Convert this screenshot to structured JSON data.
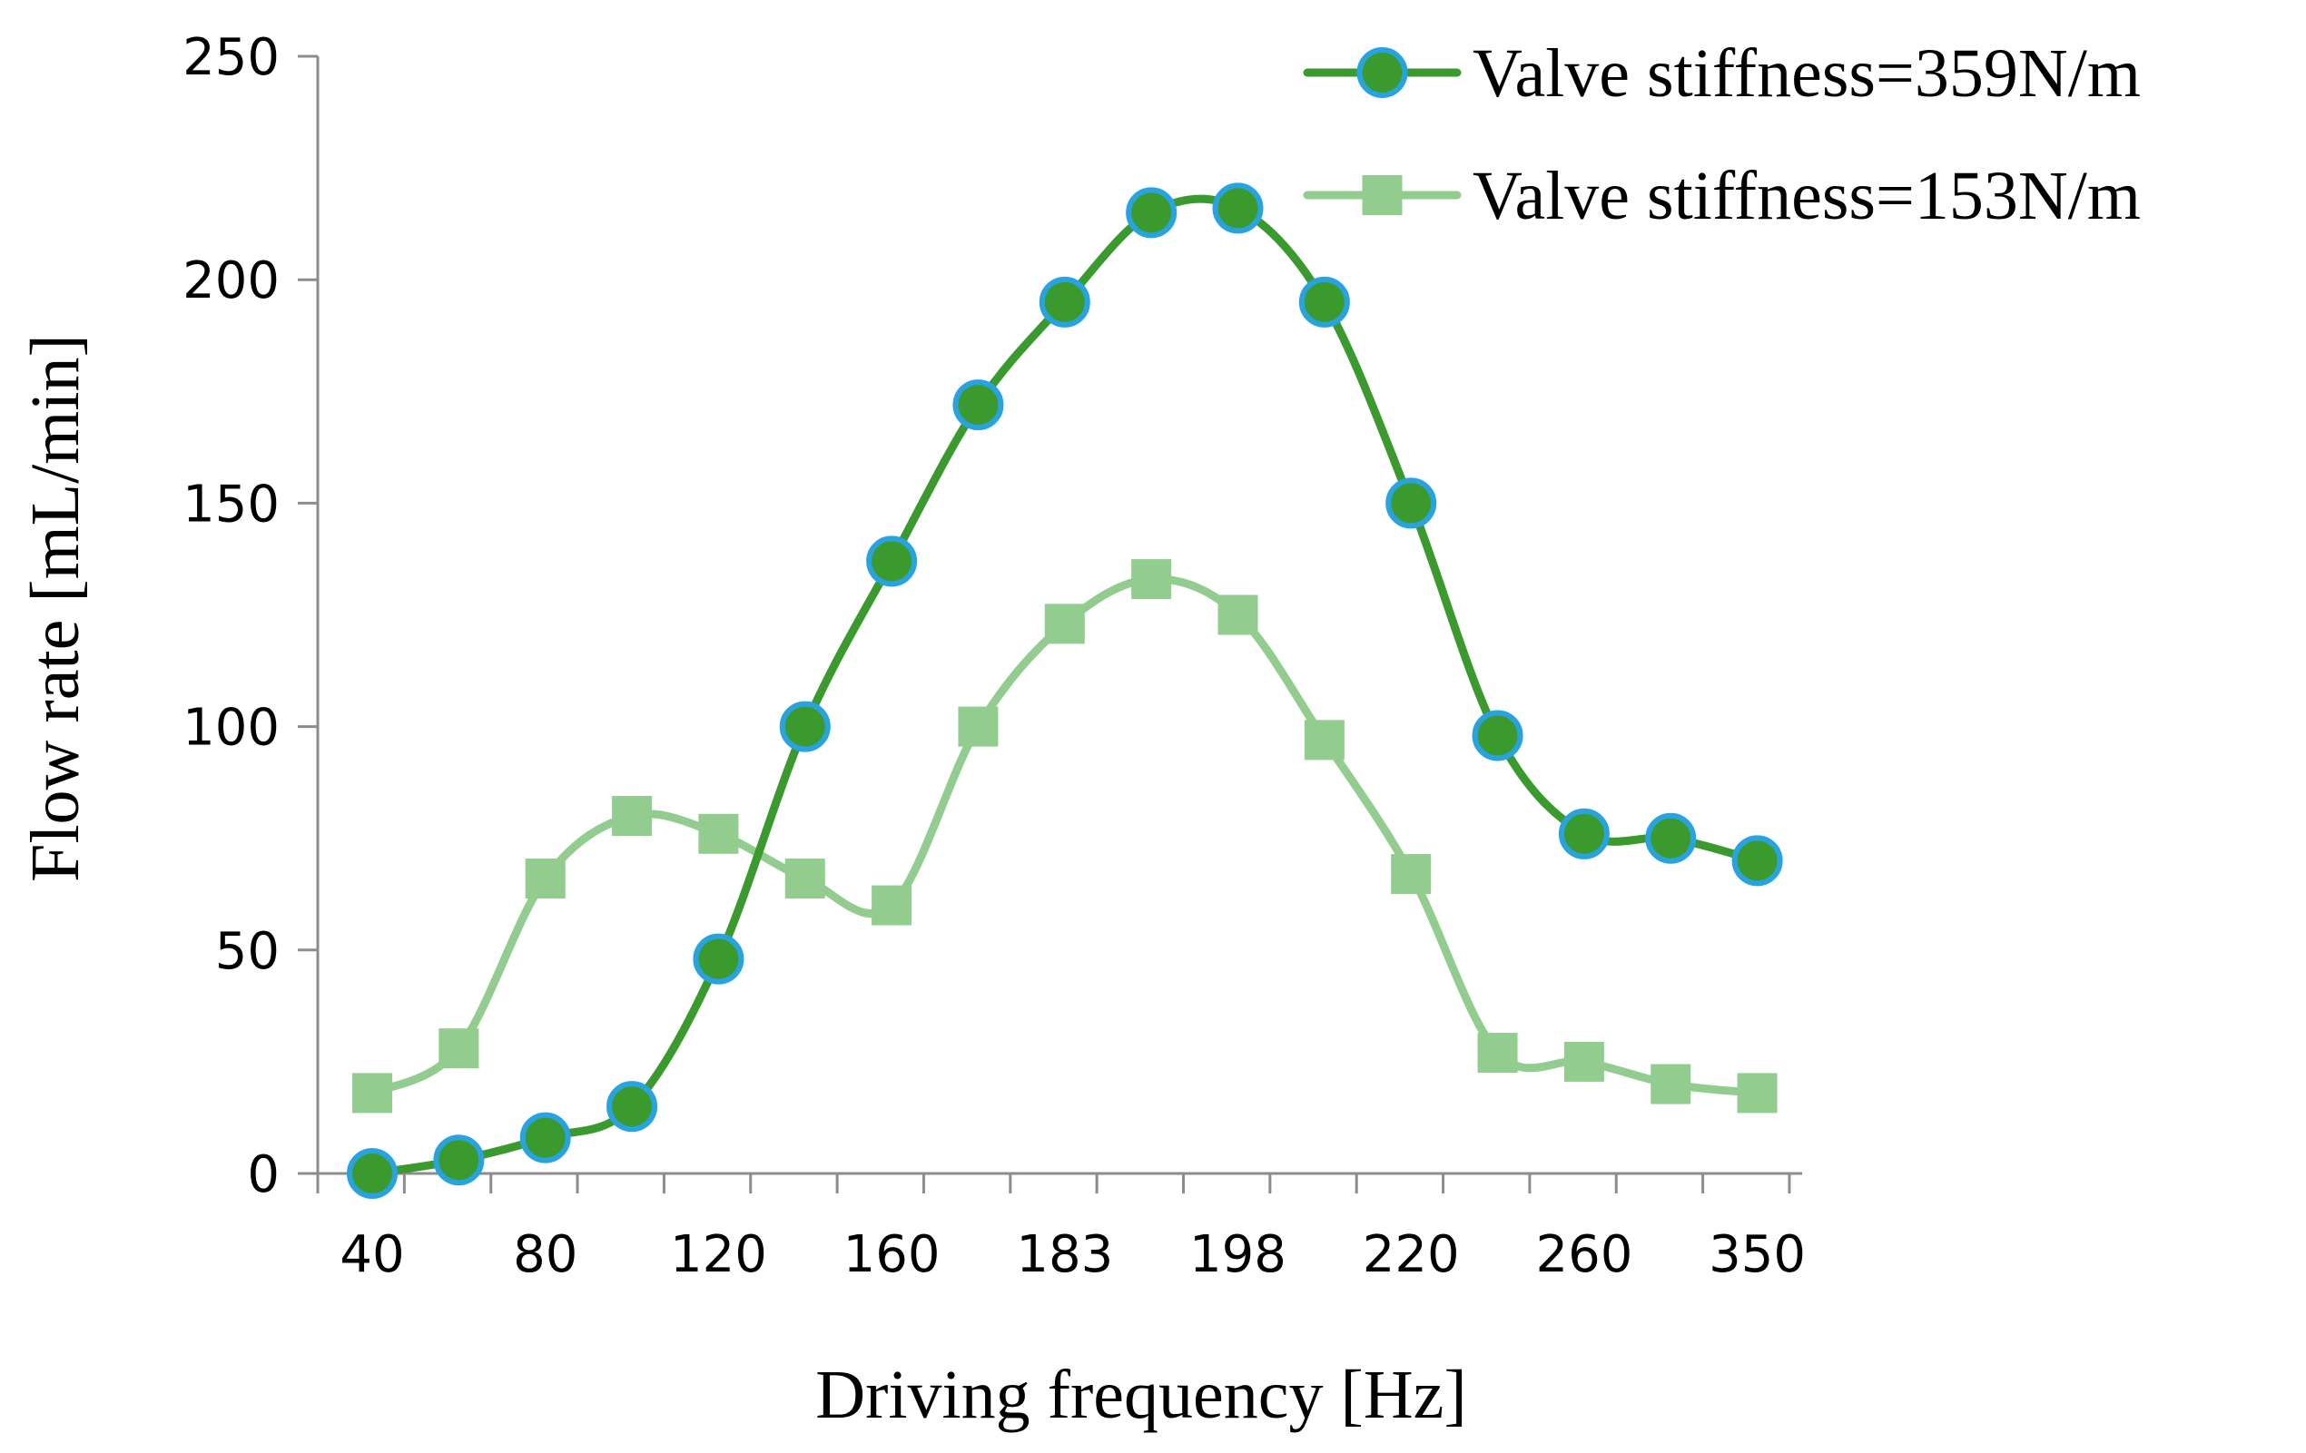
{
  "chart_data": {
    "type": "line",
    "title": "",
    "xlabel": "Driving frequency [Hz]",
    "ylabel": "Flow rate [mL/min]",
    "ylim": [
      0,
      250
    ],
    "yticks": [
      0,
      50,
      100,
      150,
      200,
      250
    ],
    "x_tick_labels": [
      "40",
      "80",
      "120",
      "160",
      "183",
      "198",
      "220",
      "260",
      "350"
    ],
    "x_tick_label_points": [
      0,
      2,
      4,
      6,
      8,
      10,
      12,
      14,
      16
    ],
    "num_points": 17,
    "grid": false,
    "legend_position": "top-right",
    "series": [
      {
        "name": "Valve stiffness=359N/m",
        "marker": "circle",
        "line_color": "#3a9a2e",
        "marker_fill": "#3a9a2e",
        "marker_edge": "#29a3e0",
        "values": [
          0,
          3,
          8,
          15,
          48,
          100,
          137,
          172,
          195,
          215,
          216,
          195,
          150,
          98,
          76,
          75,
          70
        ]
      },
      {
        "name": "Valve stiffness=153N/m",
        "marker": "square",
        "line_color": "#92cc8f",
        "marker_fill": "#92cc8f",
        "marker_edge": "#92cc8f",
        "values": [
          18,
          28,
          66,
          80,
          76,
          66,
          60,
          100,
          123,
          133,
          125,
          97,
          67,
          27,
          25,
          20,
          18
        ]
      }
    ]
  }
}
